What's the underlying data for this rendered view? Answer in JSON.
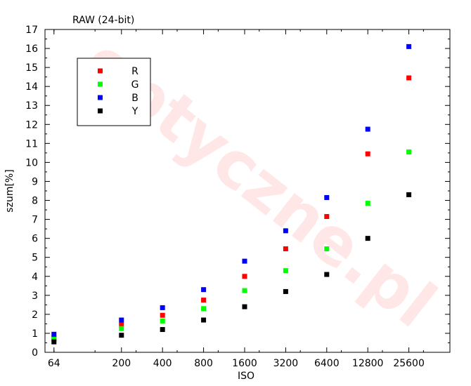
{
  "chart_data": {
    "type": "scatter",
    "title": "RAW (24-bit)",
    "xlabel": "ISO",
    "ylabel": "szum[%]",
    "x_scale": "log2",
    "x_ticks": [
      64,
      200,
      400,
      800,
      1600,
      3200,
      6400,
      12800,
      25600
    ],
    "x_tick_labels": [
      "64",
      "200",
      "400",
      "800",
      "1600",
      "3200",
      "6400",
      "12800",
      "25600"
    ],
    "xlim": [
      55,
      51200
    ],
    "ylim": [
      0,
      17
    ],
    "y_ticks": [
      0,
      1,
      2,
      3,
      4,
      5,
      6,
      7,
      8,
      9,
      10,
      11,
      12,
      13,
      14,
      15,
      16,
      17
    ],
    "grid": false,
    "legend_position": "top-left",
    "series": [
      {
        "name": "R",
        "color": "#ff0000",
        "x": [
          64,
          200,
          400,
          800,
          1600,
          3200,
          6400,
          12800,
          25600
        ],
        "y": [
          0.75,
          1.45,
          1.95,
          2.75,
          4.0,
          5.45,
          7.15,
          10.45,
          14.45
        ]
      },
      {
        "name": "G",
        "color": "#00ff00",
        "x": [
          64,
          200,
          400,
          800,
          1600,
          3200,
          6400,
          12800,
          25600
        ],
        "y": [
          0.7,
          1.25,
          1.65,
          2.3,
          3.25,
          4.3,
          5.45,
          7.85,
          10.55
        ]
      },
      {
        "name": "B",
        "color": "#0000ff",
        "x": [
          64,
          200,
          400,
          800,
          1600,
          3200,
          6400,
          12800,
          25600
        ],
        "y": [
          0.95,
          1.7,
          2.35,
          3.3,
          4.8,
          6.4,
          8.15,
          11.75,
          16.1
        ]
      },
      {
        "name": "Y",
        "color": "#000000",
        "x": [
          64,
          200,
          400,
          800,
          1600,
          3200,
          6400,
          12800,
          25600
        ],
        "y": [
          0.55,
          0.9,
          1.2,
          1.7,
          2.4,
          3.2,
          4.1,
          6.0,
          8.3
        ]
      }
    ]
  },
  "watermark": "optyczne.pl"
}
